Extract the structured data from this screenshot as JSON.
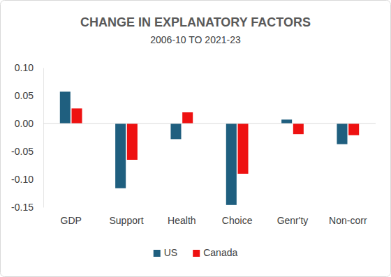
{
  "chart_data": {
    "type": "bar",
    "title": "CHANGE IN EXPLANATORY FACTORS",
    "subtitle": "2006-10 TO 2021-23",
    "categories": [
      "GDP",
      "Support",
      "Health",
      "Choice",
      "Genr'ty",
      "Non-corr"
    ],
    "series": [
      {
        "name": "US",
        "color": "#1f5f7f",
        "values": [
          0.057,
          -0.116,
          -0.028,
          -0.146,
          0.007,
          -0.037
        ]
      },
      {
        "name": "Canada",
        "color": "#ee1111",
        "values": [
          0.027,
          -0.065,
          0.02,
          -0.09,
          -0.019,
          -0.021
        ]
      }
    ],
    "ylim": [
      -0.15,
      0.1
    ],
    "yticks": [
      {
        "value": 0.1,
        "label": "0.10"
      },
      0.05,
      {
        "value": 0,
        "label": "0.00"
      },
      -0.05,
      {
        "value": -0.1,
        "label": "-0.10"
      },
      -0.15
    ],
    "grid": false,
    "legend": "bottom"
  }
}
